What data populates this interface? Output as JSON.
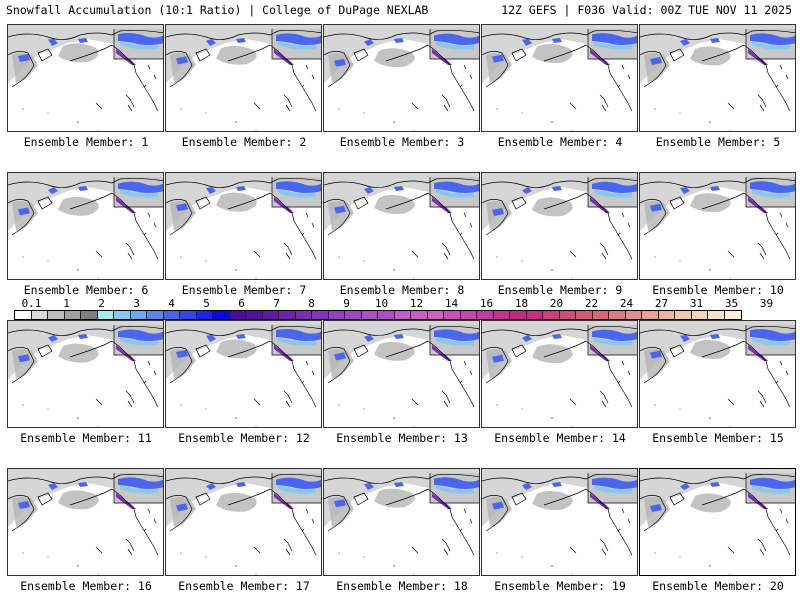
{
  "header": {
    "title_left": "Snowfall Accumulation (10:1 Ratio) | College of DuPage NEXLAB",
    "title_right": "12Z GEFS | F036 Valid: 00Z TUE NOV 11 2025"
  },
  "panels": [
    {
      "label": "Ensemble Member: 1"
    },
    {
      "label": "Ensemble Member: 2"
    },
    {
      "label": "Ensemble Member: 3"
    },
    {
      "label": "Ensemble Member: 4"
    },
    {
      "label": "Ensemble Member: 5"
    },
    {
      "label": "Ensemble Member: 6"
    },
    {
      "label": "Ensemble Member: 7"
    },
    {
      "label": "Ensemble Member: 8"
    },
    {
      "label": "Ensemble Member: 9"
    },
    {
      "label": "Ensemble Member: 10"
    },
    {
      "label": "Ensemble Member: 11"
    },
    {
      "label": "Ensemble Member: 12"
    },
    {
      "label": "Ensemble Member: 13"
    },
    {
      "label": "Ensemble Member: 14"
    },
    {
      "label": "Ensemble Member: 15"
    },
    {
      "label": "Ensemble Member: 16"
    },
    {
      "label": "Ensemble Member: 17"
    },
    {
      "label": "Ensemble Member: 18"
    },
    {
      "label": "Ensemble Member: 19"
    },
    {
      "label": "Ensemble Member: 20"
    }
  ],
  "colorbar": {
    "labels": [
      "0.1",
      "1",
      "2",
      "3",
      "4",
      "5",
      "6",
      "7",
      "8",
      "9",
      "10",
      "12",
      "14",
      "16",
      "18",
      "20",
      "22",
      "24",
      "27",
      "31",
      "35",
      "39"
    ],
    "colors": [
      "#ffffff",
      "#d9d9d9",
      "#bdbdbd",
      "#a0a0a0",
      "#7f7f7f",
      "#a6eef0",
      "#86c8f0",
      "#6ea8f0",
      "#5a86f0",
      "#4a66f0",
      "#3244f0",
      "#1a22f5",
      "#0a06f0",
      "#4a0c9c",
      "#560fa0",
      "#6318a8",
      "#6f22b0",
      "#7b2cb6",
      "#8734bc",
      "#9440c2",
      "#9e48c6",
      "#a852cc",
      "#b04cc8",
      "#c45ccc",
      "#cc5cc4",
      "#d060c0",
      "#c850b8",
      "#c448b0",
      "#c83aa0",
      "#c83094",
      "#c82888",
      "#cc2c80",
      "#d04078",
      "#d24c74",
      "#d45870",
      "#d86878",
      "#de7a80",
      "#e4908a",
      "#e8a294",
      "#ecb6a0",
      "#f0c6ac",
      "#f4d4b8",
      "#f8e2c6",
      "#fcf0d8"
    ]
  },
  "map": {
    "background": "#ffffff",
    "coast_color": "#000000",
    "snow_light": "#d6d6d6",
    "snow_mid": "#b4b4b4",
    "snow_blue": "#4a66f0",
    "snow_cyan": "#86c8f0",
    "snow_purple": "#7b2cb6"
  }
}
